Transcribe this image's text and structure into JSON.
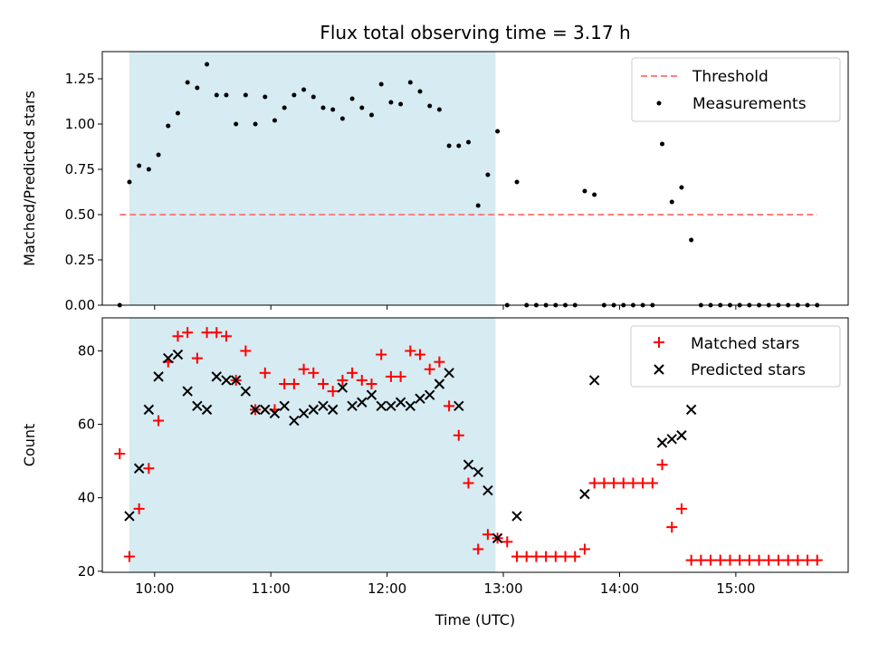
{
  "chart_data": [
    {
      "type": "scatter",
      "title": "Flux total observing time = 3.17 h",
      "xlabel": "",
      "ylabel": "Matched/Predicted stars",
      "xlim": [
        "09:33",
        "15:58"
      ],
      "ylim": [
        0,
        1.4
      ],
      "yticks": [
        0,
        0.25,
        0.5,
        0.75,
        1.0,
        1.25
      ],
      "ytick_labels": [
        "0.00",
        "0.25",
        "0.50",
        "0.75",
        "1.00",
        "1.25"
      ],
      "xticks": [
        "10:00",
        "11:00",
        "12:00",
        "13:00",
        "14:00",
        "15:00"
      ],
      "show_xtick_labels": false,
      "shaded_span": [
        "09:47",
        "12:56"
      ],
      "shade_color": "#add8e6",
      "legend_position": "top-right",
      "series": [
        {
          "name": "Threshold",
          "kind": "dashed-line",
          "color": "#ff8080",
          "points": [
            [
              "09:42",
              0.5
            ],
            [
              "15:42",
              0.5
            ]
          ]
        },
        {
          "name": "Measurements",
          "kind": "dot",
          "color": "#000000",
          "points": [
            [
              "09:42",
              0.0
            ],
            [
              "09:47",
              0.68
            ],
            [
              "09:52",
              0.77
            ],
            [
              "09:57",
              0.75
            ],
            [
              "10:02",
              0.83
            ],
            [
              "10:07",
              0.99
            ],
            [
              "10:12",
              1.06
            ],
            [
              "10:17",
              1.23
            ],
            [
              "10:22",
              1.2
            ],
            [
              "10:27",
              1.33
            ],
            [
              "10:32",
              1.16
            ],
            [
              "10:37",
              1.16
            ],
            [
              "10:42",
              1.0
            ],
            [
              "10:47",
              1.16
            ],
            [
              "10:52",
              1.0
            ],
            [
              "10:57",
              1.15
            ],
            [
              "11:02",
              1.02
            ],
            [
              "11:07",
              1.09
            ],
            [
              "11:12",
              1.16
            ],
            [
              "11:17",
              1.19
            ],
            [
              "11:22",
              1.15
            ],
            [
              "11:27",
              1.09
            ],
            [
              "11:32",
              1.08
            ],
            [
              "11:37",
              1.03
            ],
            [
              "11:42",
              1.14
            ],
            [
              "11:47",
              1.09
            ],
            [
              "11:52",
              1.05
            ],
            [
              "11:57",
              1.22
            ],
            [
              "12:02",
              1.12
            ],
            [
              "12:07",
              1.11
            ],
            [
              "12:12",
              1.23
            ],
            [
              "12:17",
              1.18
            ],
            [
              "12:22",
              1.1
            ],
            [
              "12:27",
              1.08
            ],
            [
              "12:32",
              0.88
            ],
            [
              "12:37",
              0.88
            ],
            [
              "12:42",
              0.9
            ],
            [
              "12:47",
              0.55
            ],
            [
              "12:52",
              0.72
            ],
            [
              "12:57",
              0.96
            ],
            [
              "13:02",
              0.0
            ],
            [
              "13:07",
              0.68
            ],
            [
              "13:12",
              0.0
            ],
            [
              "13:17",
              0.0
            ],
            [
              "13:22",
              0.0
            ],
            [
              "13:27",
              0.0
            ],
            [
              "13:32",
              0.0
            ],
            [
              "13:37",
              0.0
            ],
            [
              "13:42",
              0.63
            ],
            [
              "13:47",
              0.61
            ],
            [
              "13:52",
              0.0
            ],
            [
              "13:57",
              0.0
            ],
            [
              "14:02",
              0.0
            ],
            [
              "14:07",
              0.0
            ],
            [
              "14:12",
              0.0
            ],
            [
              "14:17",
              0.0
            ],
            [
              "14:22",
              0.89
            ],
            [
              "14:27",
              0.57
            ],
            [
              "14:32",
              0.65
            ],
            [
              "14:37",
              0.36
            ],
            [
              "14:42",
              0.0
            ],
            [
              "14:47",
              0.0
            ],
            [
              "14:52",
              0.0
            ],
            [
              "14:57",
              0.0
            ],
            [
              "15:02",
              0.0
            ],
            [
              "15:07",
              0.0
            ],
            [
              "15:12",
              0.0
            ],
            [
              "15:17",
              0.0
            ],
            [
              "15:22",
              0.0
            ],
            [
              "15:27",
              0.0
            ],
            [
              "15:32",
              0.0
            ],
            [
              "15:37",
              0.0
            ],
            [
              "15:42",
              0.0
            ]
          ]
        }
      ]
    },
    {
      "type": "scatter",
      "title": "",
      "xlabel": "Time (UTC)",
      "ylabel": "Count",
      "xlim": [
        "09:33",
        "15:58"
      ],
      "ylim": [
        19.7,
        89
      ],
      "yticks": [
        20,
        40,
        60,
        80
      ],
      "ytick_labels": [
        "20",
        "40",
        "60",
        "80"
      ],
      "xticks": [
        "10:00",
        "11:00",
        "12:00",
        "13:00",
        "14:00",
        "15:00"
      ],
      "xtick_labels": [
        "10:00",
        "11:00",
        "12:00",
        "13:00",
        "14:00",
        "15:00"
      ],
      "shaded_span": [
        "09:47",
        "12:56"
      ],
      "shade_color": "#add8e6",
      "legend_position": "top-right",
      "series": [
        {
          "name": "Matched stars",
          "kind": "plus",
          "color": "#ff0000",
          "points": [
            [
              "09:42",
              52
            ],
            [
              "09:47",
              24
            ],
            [
              "09:52",
              37
            ],
            [
              "09:57",
              48
            ],
            [
              "10:02",
              61
            ],
            [
              "10:07",
              77
            ],
            [
              "10:12",
              84
            ],
            [
              "10:17",
              85
            ],
            [
              "10:22",
              78
            ],
            [
              "10:27",
              85
            ],
            [
              "10:32",
              85
            ],
            [
              "10:37",
              84
            ],
            [
              "10:42",
              72
            ],
            [
              "10:47",
              80
            ],
            [
              "10:52",
              64
            ],
            [
              "10:57",
              74
            ],
            [
              "11:02",
              64
            ],
            [
              "11:07",
              71
            ],
            [
              "11:12",
              71
            ],
            [
              "11:17",
              75
            ],
            [
              "11:22",
              74
            ],
            [
              "11:27",
              71
            ],
            [
              "11:32",
              69
            ],
            [
              "11:37",
              72
            ],
            [
              "11:42",
              74
            ],
            [
              "11:47",
              72
            ],
            [
              "11:52",
              71
            ],
            [
              "11:57",
              79
            ],
            [
              "12:02",
              73
            ],
            [
              "12:07",
              73
            ],
            [
              "12:12",
              80
            ],
            [
              "12:17",
              79
            ],
            [
              "12:22",
              75
            ],
            [
              "12:27",
              77
            ],
            [
              "12:32",
              65
            ],
            [
              "12:37",
              57
            ],
            [
              "12:42",
              44
            ],
            [
              "12:47",
              26
            ],
            [
              "12:52",
              30
            ],
            [
              "12:57",
              29
            ],
            [
              "13:02",
              28
            ],
            [
              "13:07",
              24
            ],
            [
              "13:12",
              24
            ],
            [
              "13:17",
              24
            ],
            [
              "13:22",
              24
            ],
            [
              "13:27",
              24
            ],
            [
              "13:32",
              24
            ],
            [
              "13:37",
              24
            ],
            [
              "13:42",
              26
            ],
            [
              "13:47",
              44
            ],
            [
              "13:52",
              44
            ],
            [
              "13:57",
              44
            ],
            [
              "14:02",
              44
            ],
            [
              "14:07",
              44
            ],
            [
              "14:12",
              44
            ],
            [
              "14:17",
              44
            ],
            [
              "14:22",
              49
            ],
            [
              "14:27",
              32
            ],
            [
              "14:32",
              37
            ],
            [
              "14:37",
              23
            ],
            [
              "14:42",
              23
            ],
            [
              "14:47",
              23
            ],
            [
              "14:52",
              23
            ],
            [
              "14:57",
              23
            ],
            [
              "15:02",
              23
            ],
            [
              "15:07",
              23
            ],
            [
              "15:12",
              23
            ],
            [
              "15:17",
              23
            ],
            [
              "15:22",
              23
            ],
            [
              "15:27",
              23
            ],
            [
              "15:32",
              23
            ],
            [
              "15:37",
              23
            ],
            [
              "15:42",
              23
            ]
          ]
        },
        {
          "name": "Predicted stars",
          "kind": "cross",
          "color": "#000000",
          "points": [
            [
              "09:47",
              35
            ],
            [
              "09:52",
              48
            ],
            [
              "09:57",
              64
            ],
            [
              "10:02",
              73
            ],
            [
              "10:07",
              78
            ],
            [
              "10:12",
              79
            ],
            [
              "10:17",
              69
            ],
            [
              "10:22",
              65
            ],
            [
              "10:27",
              64
            ],
            [
              "10:32",
              73
            ],
            [
              "10:37",
              72
            ],
            [
              "10:42",
              72
            ],
            [
              "10:47",
              69
            ],
            [
              "10:52",
              64
            ],
            [
              "10:57",
              64
            ],
            [
              "11:02",
              63
            ],
            [
              "11:07",
              65
            ],
            [
              "11:12",
              61
            ],
            [
              "11:17",
              63
            ],
            [
              "11:22",
              64
            ],
            [
              "11:27",
              65
            ],
            [
              "11:32",
              64
            ],
            [
              "11:37",
              70
            ],
            [
              "11:42",
              65
            ],
            [
              "11:47",
              66
            ],
            [
              "11:52",
              68
            ],
            [
              "11:57",
              65
            ],
            [
              "12:02",
              65
            ],
            [
              "12:07",
              66
            ],
            [
              "12:12",
              65
            ],
            [
              "12:17",
              67
            ],
            [
              "12:22",
              68
            ],
            [
              "12:27",
              71
            ],
            [
              "12:32",
              74
            ],
            [
              "12:37",
              65
            ],
            [
              "12:42",
              49
            ],
            [
              "12:47",
              47
            ],
            [
              "12:52",
              42
            ],
            [
              "12:57",
              29
            ],
            [
              "13:07",
              35
            ],
            [
              "13:42",
              41
            ],
            [
              "13:47",
              72
            ],
            [
              "14:22",
              55
            ],
            [
              "14:27",
              56
            ],
            [
              "14:32",
              57
            ],
            [
              "14:37",
              64
            ]
          ]
        }
      ]
    }
  ]
}
